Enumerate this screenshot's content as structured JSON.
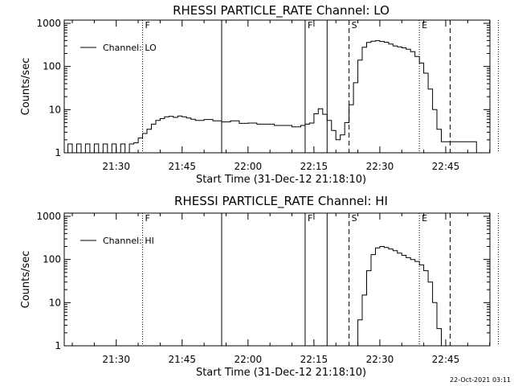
{
  "footer": {
    "timestamp": "22-Oct-2021 03:11"
  },
  "chart_data": [
    {
      "type": "line",
      "title": "RHESSI PARTICLE_RATE Channel: LO",
      "xlabel": "Start Time (31-Dec-12 21:18:10)",
      "ylabel": "Counts/sec",
      "x_ticks": [
        "21:30",
        "21:45",
        "22:00",
        "22:15",
        "22:30",
        "22:45"
      ],
      "y_ticks": [
        "1",
        "10",
        "100",
        "1000"
      ],
      "ylim": [
        1,
        1000
      ],
      "yscale": "log",
      "legend": {
        "label": "Channel: LO",
        "position": "top-left"
      },
      "series": [
        {
          "name": "Channel: LO",
          "x": [
            "21:18",
            "21:19",
            "21:20",
            "21:21",
            "21:22",
            "21:23",
            "21:24",
            "21:25",
            "21:26",
            "21:27",
            "21:28",
            "21:29",
            "21:30",
            "21:31",
            "21:32",
            "21:33",
            "21:34",
            "21:35",
            "21:36",
            "21:37",
            "21:38",
            "21:39",
            "21:40",
            "21:41",
            "21:42",
            "21:43",
            "21:44",
            "21:45",
            "21:46",
            "21:47",
            "21:48",
            "21:50",
            "21:52",
            "21:54",
            "21:56",
            "21:58",
            "22:00",
            "22:02",
            "22:04",
            "22:06",
            "22:08",
            "22:10",
            "22:12",
            "22:13",
            "22:14",
            "22:15",
            "22:16",
            "22:17",
            "22:18",
            "22:19",
            "22:20",
            "22:21",
            "22:22",
            "22:23",
            "22:24",
            "22:25",
            "22:26",
            "22:27",
            "22:28",
            "22:29",
            "22:30",
            "22:31",
            "22:32",
            "22:33",
            "22:34",
            "22:35",
            "22:36",
            "22:37",
            "22:38",
            "22:39",
            "22:40",
            "22:41",
            "22:42",
            "22:43",
            "22:44",
            "22:45",
            "22:47",
            "22:50",
            "22:52",
            "22:53"
          ],
          "y": [
            1,
            1.6,
            1,
            1.6,
            1,
            1.6,
            1,
            1.6,
            1,
            1.6,
            1,
            1.6,
            1,
            1.6,
            1,
            1.6,
            1.7,
            2.2,
            2.8,
            3.5,
            4.6,
            5.6,
            6.2,
            6.8,
            7,
            6.6,
            7.1,
            6.8,
            6.4,
            6.0,
            5.6,
            5.9,
            5.5,
            5.2,
            5.5,
            4.8,
            4.9,
            4.6,
            4.6,
            4.3,
            4.3,
            4.0,
            4.3,
            4.6,
            4.9,
            8.0,
            10.5,
            7.8,
            5.6,
            3.3,
            2.0,
            2.6,
            5.0,
            13,
            42,
            140,
            280,
            360,
            385,
            395,
            380,
            365,
            330,
            300,
            285,
            270,
            250,
            220,
            170,
            120,
            70,
            30,
            10,
            3.5,
            1.8,
            1.8,
            1.8,
            1.8,
            1,
            1
          ]
        }
      ],
      "events": [
        {
          "time": "21:36",
          "label": "F",
          "style": "dotted"
        },
        {
          "time": "21:54",
          "label": "",
          "style": "solid"
        },
        {
          "time": "22:13",
          "label": "F",
          "style": "solid"
        },
        {
          "time": "22:18",
          "label": "",
          "style": "solid"
        },
        {
          "time": "22:23",
          "label": "S",
          "style": "dashed"
        },
        {
          "time": "22:39",
          "label": "E",
          "style": "dotted"
        },
        {
          "time": "22:46",
          "label": "",
          "style": "dashed"
        },
        {
          "time": "22:57",
          "label": "",
          "style": "dotted"
        }
      ]
    },
    {
      "type": "line",
      "title": "RHESSI PARTICLE_RATE Channel: HI",
      "xlabel": "Start Time (31-Dec-12 21:18:10)",
      "ylabel": "Counts/sec",
      "x_ticks": [
        "21:30",
        "21:45",
        "22:00",
        "22:15",
        "22:30",
        "22:45"
      ],
      "y_ticks": [
        "1",
        "10",
        "100",
        "1000"
      ],
      "ylim": [
        1,
        1000
      ],
      "yscale": "log",
      "legend": {
        "label": "Channel: HI",
        "position": "top-left"
      },
      "series": [
        {
          "name": "Channel: HI",
          "x": [
            "22:24",
            "22:25",
            "22:26",
            "22:27",
            "22:28",
            "22:29",
            "22:30",
            "22:31",
            "22:32",
            "22:33",
            "22:34",
            "22:35",
            "22:36",
            "22:37",
            "22:38",
            "22:39",
            "22:40",
            "22:41",
            "22:42",
            "22:43",
            "22:44"
          ],
          "y": [
            1,
            4,
            15,
            55,
            130,
            185,
            200,
            190,
            175,
            160,
            140,
            125,
            110,
            100,
            90,
            75,
            55,
            30,
            10,
            2.5,
            1
          ]
        }
      ],
      "events": [
        {
          "time": "21:36",
          "label": "F",
          "style": "dotted"
        },
        {
          "time": "21:54",
          "label": "",
          "style": "solid"
        },
        {
          "time": "22:13",
          "label": "F",
          "style": "solid"
        },
        {
          "time": "22:18",
          "label": "",
          "style": "solid"
        },
        {
          "time": "22:23",
          "label": "S",
          "style": "dashed"
        },
        {
          "time": "22:39",
          "label": "E",
          "style": "dotted"
        },
        {
          "time": "22:46",
          "label": "",
          "style": "dashed"
        },
        {
          "time": "22:57",
          "label": "",
          "style": "dotted"
        }
      ]
    }
  ]
}
